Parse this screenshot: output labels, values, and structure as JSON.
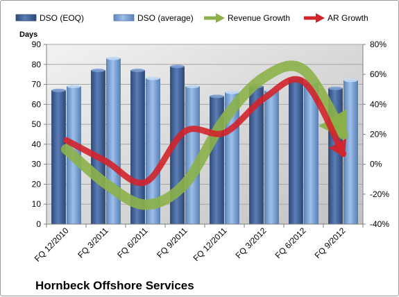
{
  "chart_data": {
    "type": "bar",
    "categories": [
      "FQ 12/2010",
      "FQ 3/2011",
      "FQ 6/2011",
      "FQ 9/2011",
      "FQ 12/2011",
      "FQ 3/2012",
      "FQ 6/2012",
      "FQ 9/2012"
    ],
    "series": [
      {
        "name": "DSO (EOQ)",
        "kind": "bar",
        "axis": "left",
        "color": "#4f6fa3",
        "values": [
          67,
          77,
          77,
          79,
          64,
          69,
          73,
          68
        ]
      },
      {
        "name": "DSO (average)",
        "kind": "bar",
        "axis": "left",
        "color": "#8fb3df",
        "values": [
          69,
          83,
          73,
          69,
          66,
          67,
          71,
          72
        ]
      },
      {
        "name": "Revenue Growth",
        "kind": "line-arrow",
        "axis": "right",
        "color": "#8cb14a",
        "values": [
          10,
          -13,
          -27,
          -13,
          30,
          58,
          63,
          20
        ]
      },
      {
        "name": "AR Growth",
        "kind": "line-arrow",
        "axis": "right",
        "color": "#d2242b",
        "values": [
          16,
          2,
          -12,
          22,
          21,
          44,
          55,
          7
        ]
      }
    ],
    "ylabel": "Days",
    "ylim": [
      0,
      90
    ],
    "yticks": [
      0,
      10,
      20,
      30,
      40,
      50,
      60,
      70,
      80,
      90
    ],
    "y2lim": [
      -40,
      80
    ],
    "y2ticks": [
      "-40%",
      "-20%",
      "0%",
      "20%",
      "40%",
      "60%",
      "80%"
    ],
    "legend": "top",
    "grid": true
  },
  "company": "Hornbeck Offshore Services"
}
